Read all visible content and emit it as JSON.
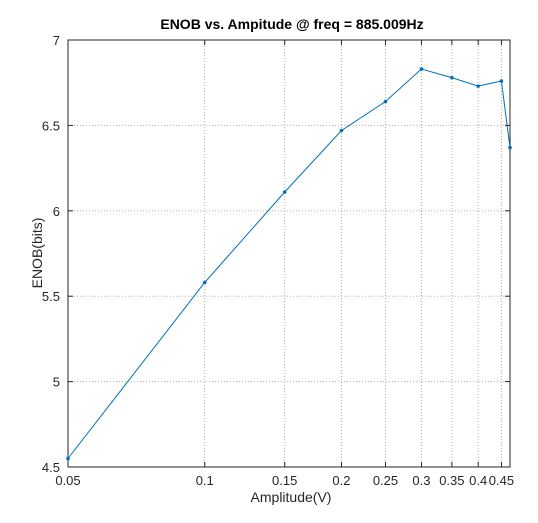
{
  "chart_data": {
    "type": "line",
    "title": "ENOB vs. Ampitude @ freq = 885.009Hz",
    "xlabel": "Amplitude(V)",
    "ylabel": "ENOB(bits)",
    "xscale": "log",
    "xlim": [
      0.05,
      0.47
    ],
    "ylim": [
      4.5,
      7
    ],
    "xticks": [
      0.05,
      0.1,
      0.15,
      0.2,
      0.25,
      0.3,
      0.35,
      0.4,
      0.45
    ],
    "xtick_labels": [
      "0.05",
      "0.1",
      "0.15",
      "0.2",
      "0.25",
      "0.3",
      "0.35",
      "0.4",
      "0.45"
    ],
    "yticks": [
      4.5,
      5,
      5.5,
      6,
      6.5,
      7
    ],
    "ytick_labels": [
      "4.5",
      "5",
      "5.5",
      "6",
      "6.5",
      "7"
    ],
    "grid": true,
    "series": [
      {
        "color": "#0072bd",
        "x": [
          0.05,
          0.1,
          0.15,
          0.2,
          0.25,
          0.3,
          0.35,
          0.4,
          0.45,
          0.47
        ],
        "y": [
          4.55,
          5.58,
          6.11,
          6.47,
          6.64,
          6.83,
          6.78,
          6.73,
          6.76,
          6.37
        ]
      }
    ]
  }
}
